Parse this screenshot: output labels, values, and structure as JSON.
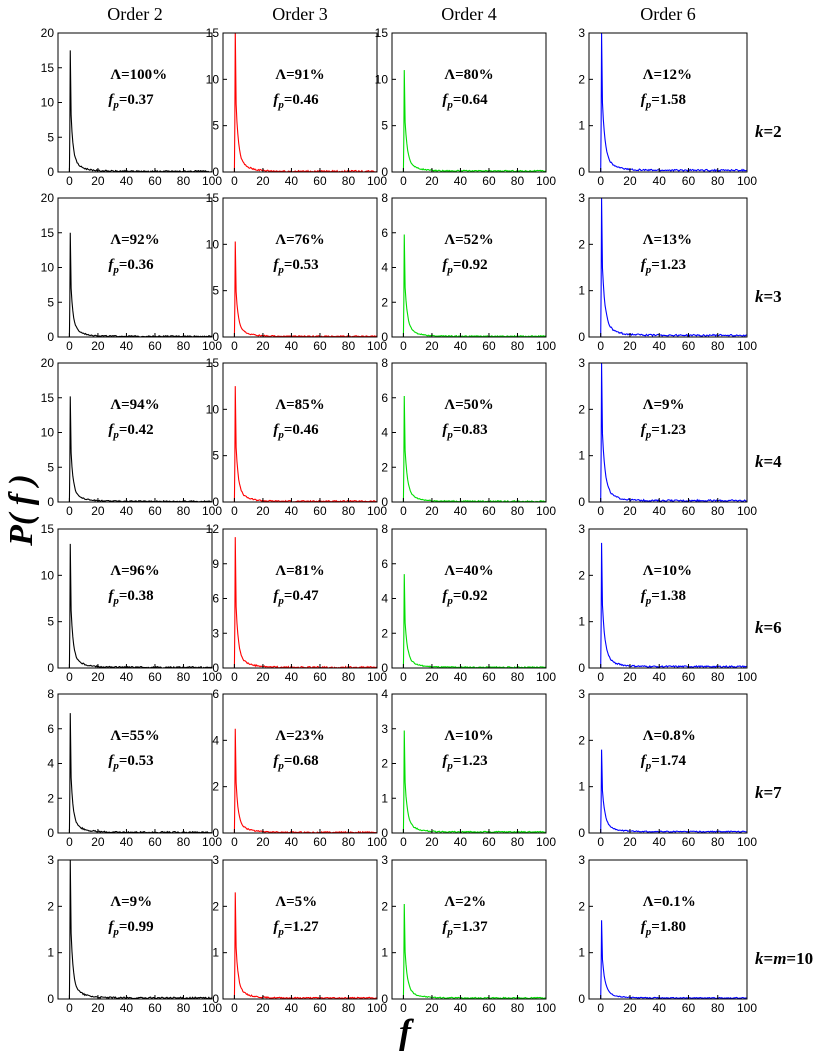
{
  "chart_data": {
    "type": "line",
    "layout": "6 rows x 4 columns grid of histograms",
    "xlabel": "f",
    "ylabel": "P( f )",
    "x_ticks": [
      0,
      20,
      40,
      60,
      80,
      100
    ],
    "xlim": [
      -8,
      100
    ],
    "column_titles": [
      "Order 2",
      "Order 3",
      "Order 4",
      "Order 6"
    ],
    "column_colors": [
      "#000000",
      "#ff0000",
      "#00dd00",
      "#0000ff"
    ],
    "row_labels": [
      {
        "pre": "k",
        "mid": "",
        "post": "=2"
      },
      {
        "pre": "k",
        "mid": "",
        "post": "=3"
      },
      {
        "pre": "k",
        "mid": "",
        "post": "=4"
      },
      {
        "pre": "k",
        "mid": "",
        "post": "=6"
      },
      {
        "pre": "k",
        "mid": "",
        "post": "=7"
      },
      {
        "pre": "k",
        "mid": "=m",
        "post": "=10"
      }
    ],
    "panels": [
      [
        {
          "ylim": [
            0,
            20
          ],
          "yticks": [
            0,
            5,
            10,
            15,
            20
          ],
          "peak": 17.5,
          "tail": 0.02,
          "lambda": "100%",
          "fp": "0.37"
        },
        {
          "ylim": [
            0,
            15
          ],
          "yticks": [
            0,
            5,
            10,
            15
          ],
          "peak": 15.5,
          "tail": 0.02,
          "lambda": "91%",
          "fp": "0.46"
        },
        {
          "ylim": [
            0,
            15
          ],
          "yticks": [
            0,
            5,
            10,
            15
          ],
          "peak": 11,
          "tail": 0.03,
          "lambda": "80%",
          "fp": "0.64"
        },
        {
          "ylim": [
            0,
            3
          ],
          "yticks": [
            0,
            1,
            2,
            3
          ],
          "peak": 3,
          "tail": 0.05,
          "lambda": "12%",
          "fp": "1.58"
        }
      ],
      [
        {
          "ylim": [
            0,
            20
          ],
          "yticks": [
            0,
            5,
            10,
            15,
            20
          ],
          "peak": 15,
          "tail": 0.02,
          "lambda": "92%",
          "fp": "0.36"
        },
        {
          "ylim": [
            0,
            15
          ],
          "yticks": [
            0,
            5,
            10,
            15
          ],
          "peak": 10.3,
          "tail": 0.02,
          "lambda": "76%",
          "fp": "0.53"
        },
        {
          "ylim": [
            0,
            8
          ],
          "yticks": [
            0,
            2,
            4,
            6,
            8
          ],
          "peak": 5.9,
          "tail": 0.02,
          "lambda": "52%",
          "fp": "0.92"
        },
        {
          "ylim": [
            0,
            3
          ],
          "yticks": [
            0,
            1,
            2,
            3
          ],
          "peak": 3,
          "tail": 0.05,
          "lambda": "13%",
          "fp": "1.23"
        }
      ],
      [
        {
          "ylim": [
            0,
            20
          ],
          "yticks": [
            0,
            5,
            10,
            15,
            20
          ],
          "peak": 15.2,
          "tail": 0.02,
          "lambda": "94%",
          "fp": "0.42"
        },
        {
          "ylim": [
            0,
            15
          ],
          "yticks": [
            0,
            5,
            10,
            15
          ],
          "peak": 12.5,
          "tail": 0.02,
          "lambda": "85%",
          "fp": "0.46"
        },
        {
          "ylim": [
            0,
            8
          ],
          "yticks": [
            0,
            2,
            4,
            6,
            8
          ],
          "peak": 6.1,
          "tail": 0.02,
          "lambda": "50%",
          "fp": "0.83"
        },
        {
          "ylim": [
            0,
            3
          ],
          "yticks": [
            0,
            1,
            2,
            3
          ],
          "peak": 3,
          "tail": 0.04,
          "lambda": "9%",
          "fp": "1.23"
        }
      ],
      [
        {
          "ylim": [
            0,
            15
          ],
          "yticks": [
            0,
            5,
            10,
            15
          ],
          "peak": 13.4,
          "tail": 0.02,
          "lambda": "96%",
          "fp": "0.38"
        },
        {
          "ylim": [
            0,
            12
          ],
          "yticks": [
            0,
            3,
            6,
            9,
            12
          ],
          "peak": 11.3,
          "tail": 0.02,
          "lambda": "81%",
          "fp": "0.47"
        },
        {
          "ylim": [
            0,
            8
          ],
          "yticks": [
            0,
            2,
            4,
            6,
            8
          ],
          "peak": 5.4,
          "tail": 0.02,
          "lambda": "40%",
          "fp": "0.92"
        },
        {
          "ylim": [
            0,
            3
          ],
          "yticks": [
            0,
            1,
            2,
            3
          ],
          "peak": 2.7,
          "tail": 0.04,
          "lambda": "10%",
          "fp": "1.38"
        }
      ],
      [
        {
          "ylim": [
            0,
            8
          ],
          "yticks": [
            0,
            2,
            4,
            6,
            8
          ],
          "peak": 6.9,
          "tail": 0.02,
          "lambda": "55%",
          "fp": "0.53"
        },
        {
          "ylim": [
            0,
            6
          ],
          "yticks": [
            0,
            2,
            4,
            6
          ],
          "peak": 4.5,
          "tail": 0.02,
          "lambda": "23%",
          "fp": "0.68"
        },
        {
          "ylim": [
            0,
            4
          ],
          "yticks": [
            0,
            1,
            2,
            3,
            4
          ],
          "peak": 2.95,
          "tail": 0.03,
          "lambda": "10%",
          "fp": "1.23"
        },
        {
          "ylim": [
            0,
            3
          ],
          "yticks": [
            0,
            1,
            2,
            3
          ],
          "peak": 1.8,
          "tail": 0.04,
          "lambda": "0.8%",
          "fp": "1.74"
        }
      ],
      [
        {
          "ylim": [
            0,
            3
          ],
          "yticks": [
            0,
            1,
            2,
            3
          ],
          "peak": 3,
          "tail": 0.03,
          "lambda": "9%",
          "fp": "0.99"
        },
        {
          "ylim": [
            0,
            3
          ],
          "yticks": [
            0,
            1,
            2,
            3
          ],
          "peak": 2.3,
          "tail": 0.03,
          "lambda": "5%",
          "fp": "1.27"
        },
        {
          "ylim": [
            0,
            3
          ],
          "yticks": [
            0,
            1,
            2,
            3
          ],
          "peak": 2.05,
          "tail": 0.03,
          "lambda": "2%",
          "fp": "1.37"
        },
        {
          "ylim": [
            0,
            3
          ],
          "yticks": [
            0,
            1,
            2,
            3
          ],
          "peak": 1.7,
          "tail": 0.03,
          "lambda": "0.1%",
          "fp": "1.80"
        }
      ]
    ]
  }
}
